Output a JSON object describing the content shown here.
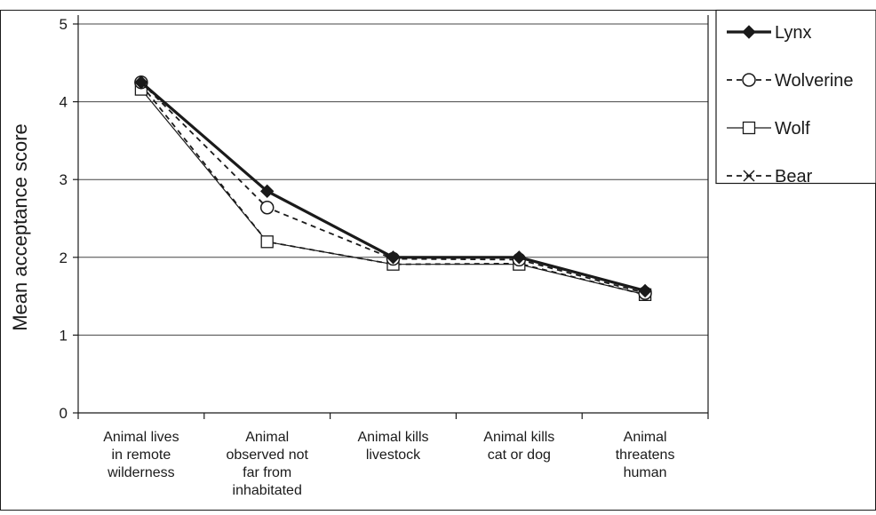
{
  "chart_data": {
    "type": "line",
    "title": "",
    "xlabel": "",
    "ylabel": "Mean acceptance score",
    "ylim": [
      0,
      5
    ],
    "yticks": [
      "0",
      "1",
      "2",
      "3",
      "4",
      "5"
    ],
    "grid": "horizontal",
    "legend_position": "top-right",
    "categories": [
      [
        "Animal lives",
        "in remote",
        "wilderness"
      ],
      [
        "Animal",
        "observed not",
        "far from",
        "inhabitated"
      ],
      [
        "Animal kills",
        "livestock"
      ],
      [
        "Animal kills",
        "cat or dog"
      ],
      [
        "Animal",
        "threatens",
        "human"
      ]
    ],
    "series": [
      {
        "name": "Lynx",
        "values": [
          4.25,
          2.85,
          2.0,
          2.0,
          1.57
        ],
        "marker": "diamond-filled",
        "line": "solid-thick"
      },
      {
        "name": "Wolverine",
        "values": [
          4.25,
          2.64,
          1.98,
          1.97,
          1.54
        ],
        "marker": "circle-open",
        "line": "dashed"
      },
      {
        "name": "Wolf",
        "values": [
          4.16,
          2.2,
          1.91,
          1.91,
          1.52
        ],
        "marker": "square-open",
        "line": "solid-thin"
      },
      {
        "name": "Bear",
        "values": [
          4.22,
          2.2,
          1.91,
          1.92,
          1.52
        ],
        "marker": "x",
        "line": "dashed"
      }
    ]
  }
}
